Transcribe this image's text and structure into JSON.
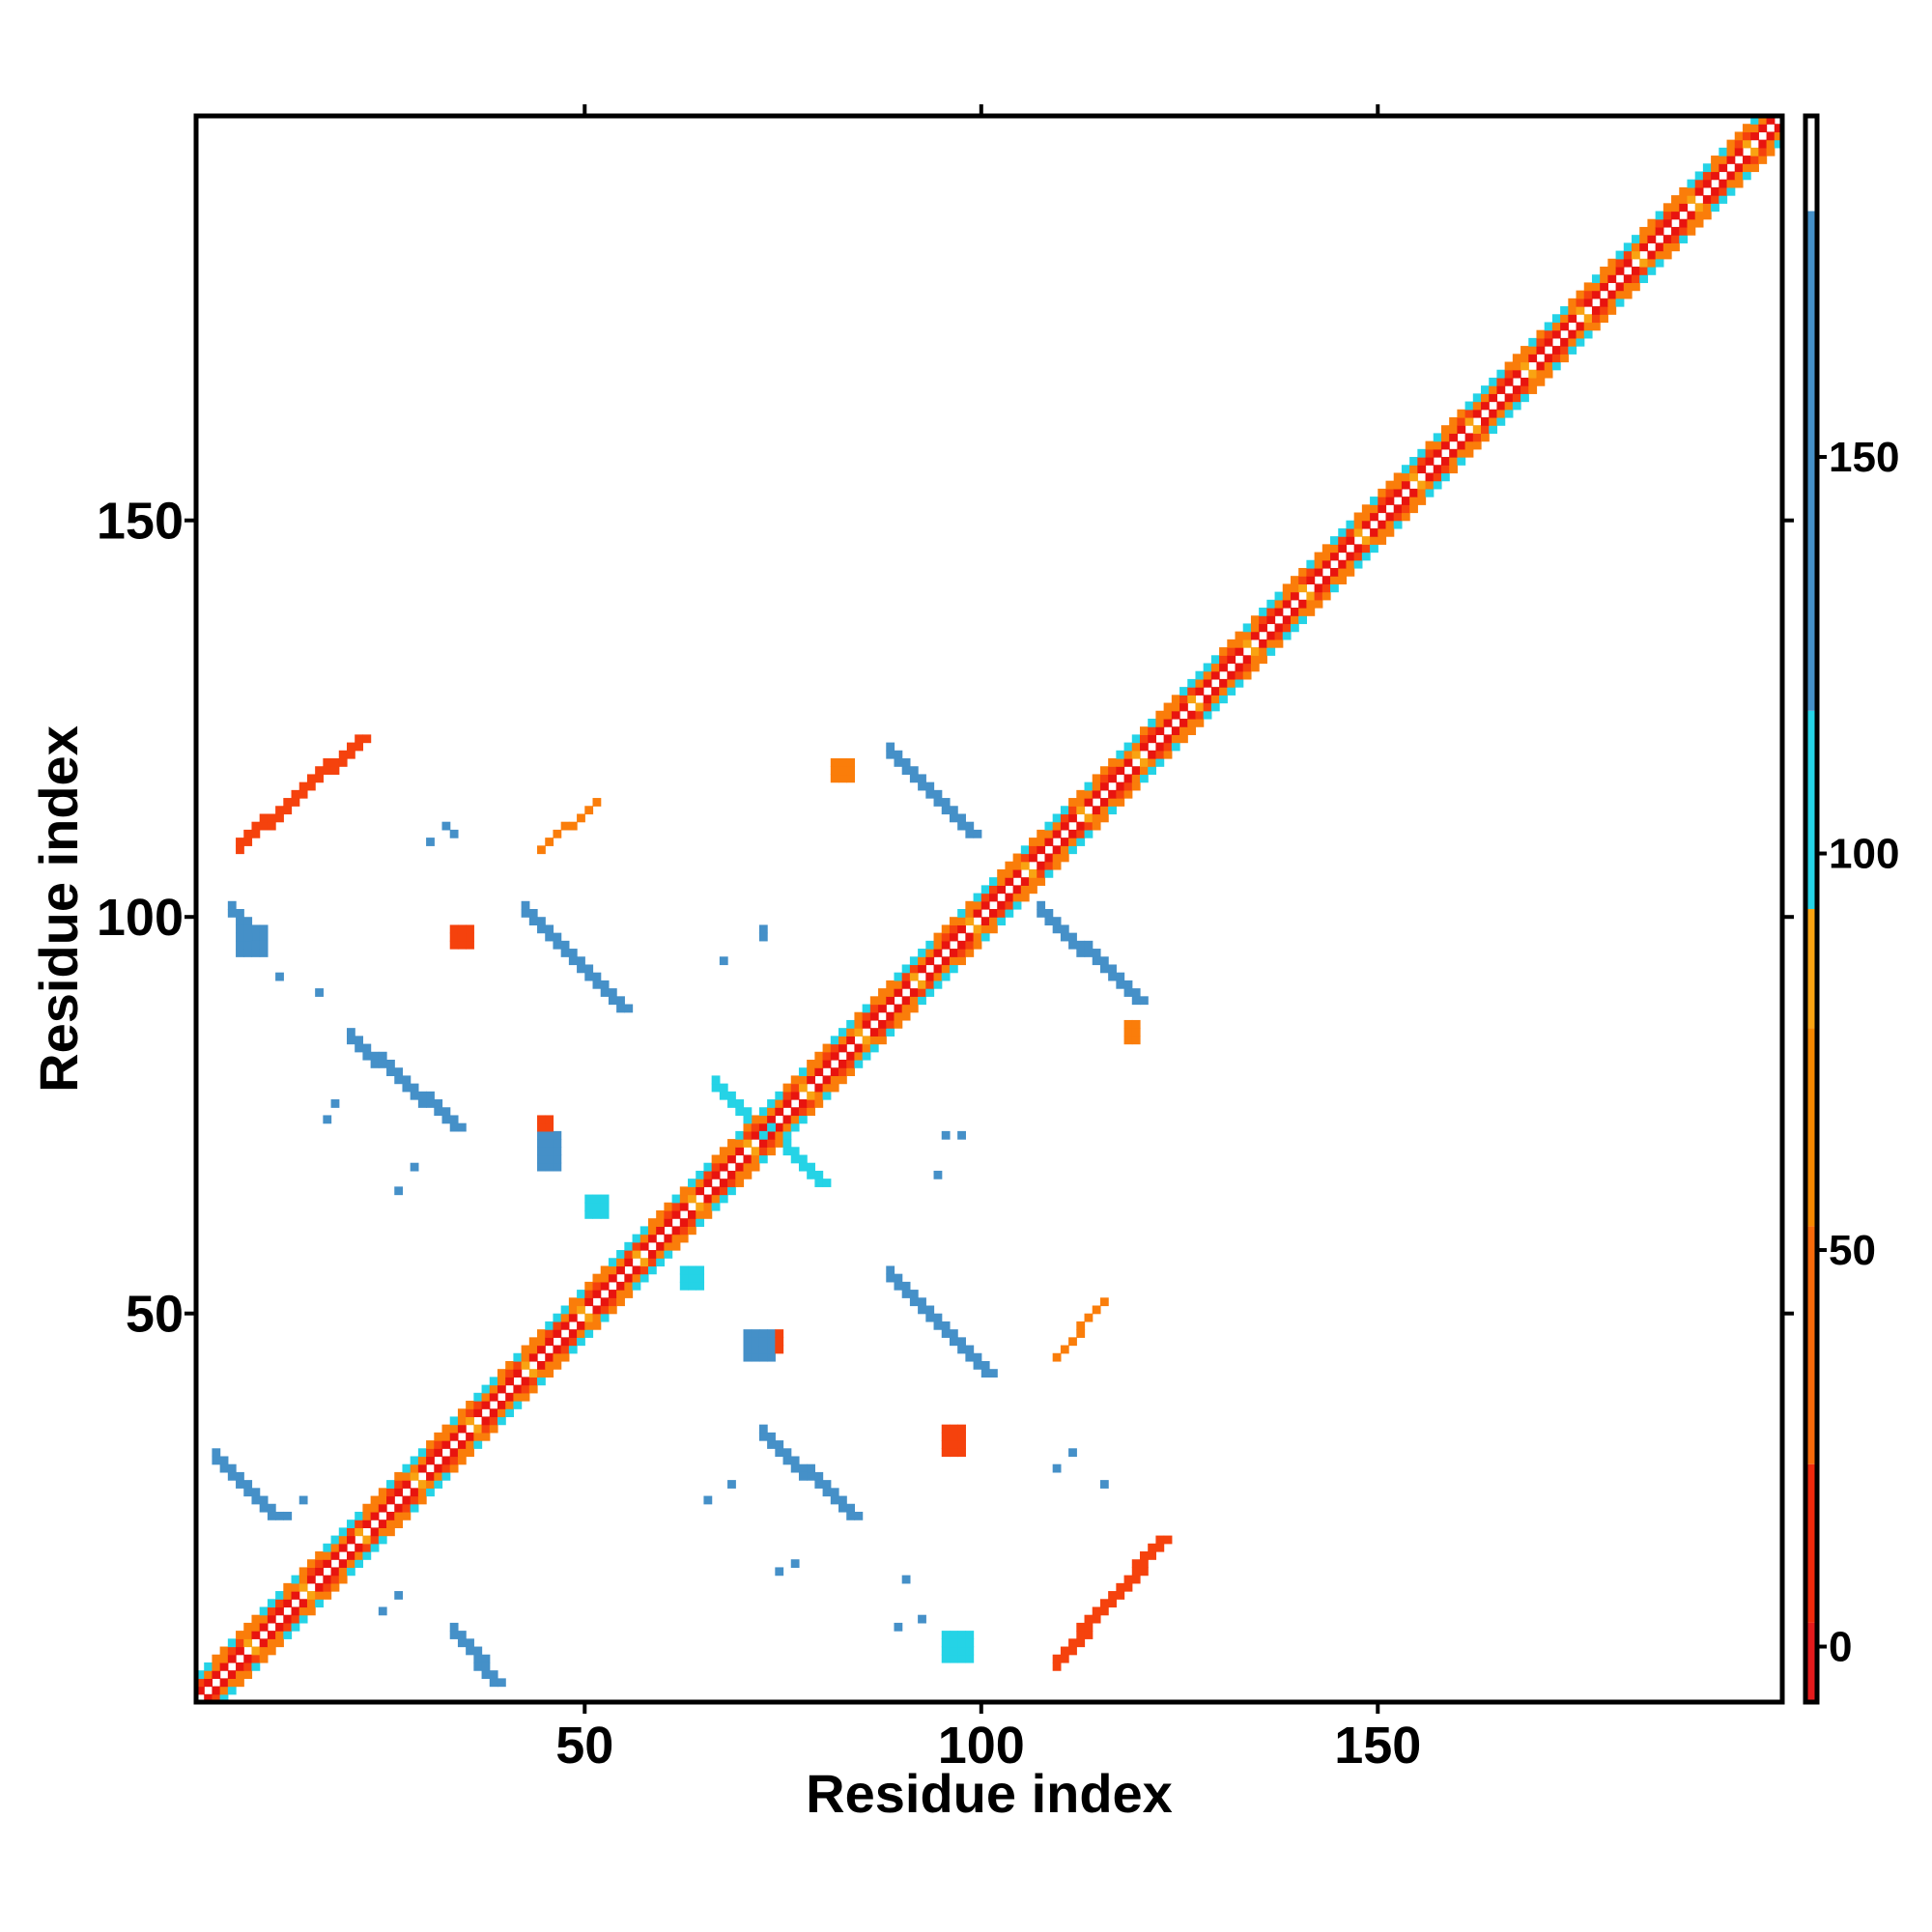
{
  "chart_data": {
    "type": "heatmap",
    "title": "",
    "xlabel": "Residue index",
    "ylabel": "Residue index",
    "xlim": [
      1,
      201
    ],
    "ylim": [
      1,
      201
    ],
    "x_ticks": [
      50,
      100,
      150
    ],
    "y_ticks": [
      50,
      100,
      150
    ],
    "grid": false,
    "n_residues": 200,
    "colorbar": {
      "ticks": [
        0,
        50,
        100,
        150
      ],
      "range": [
        -7,
        193
      ],
      "bands": [
        {
          "from": -7,
          "to": 3,
          "color": "#e41a1c"
        },
        {
          "from": 3,
          "to": 23,
          "color": "#f0290c"
        },
        {
          "from": 23,
          "to": 53,
          "color": "#f86a0a"
        },
        {
          "from": 53,
          "to": 78,
          "color": "#f58800"
        },
        {
          "from": 78,
          "to": 93,
          "color": "#f9a312"
        },
        {
          "from": 93,
          "to": 118,
          "color": "#25d3e6"
        },
        {
          "from": 118,
          "to": 181,
          "color": "#4590c8"
        },
        {
          "from": 181,
          "to": 193,
          "color": "#ffffff"
        }
      ]
    },
    "value_colors": {
      "red": "#e8140f",
      "red_orange": "#f5420d",
      "orange": "#fa7d0a",
      "light_orange": "#f9a312",
      "cyan": "#25d3e6",
      "blue": "#4590c8"
    },
    "regions": [
      {
        "kind": "segment",
        "from": [
          3,
          31
        ],
        "to": [
          10,
          24
        ],
        "width": 2,
        "color": "blue",
        "note": "antiparallel blob near (6,27)"
      },
      {
        "kind": "segment",
        "from": [
          33,
          9
        ],
        "to": [
          38,
          3
        ],
        "width": 2,
        "color": "blue"
      },
      {
        "kind": "segment",
        "from": [
          42,
          100
        ],
        "to": [
          54,
          88
        ],
        "width": 2,
        "color": "blue"
      },
      {
        "kind": "segment",
        "from": [
          42,
          100
        ],
        "to": [
          45,
          97
        ],
        "width": 2,
        "color": "cyan"
      },
      {
        "kind": "segment",
        "from": [
          20,
          84
        ],
        "to": [
          33,
          73
        ],
        "width": 2,
        "color": "blue"
      },
      {
        "kind": "segment",
        "from": [
          5,
          100
        ],
        "to": [
          8,
          97
        ],
        "width": 2,
        "color": "blue"
      },
      {
        "kind": "segment",
        "from": [
          88,
          54
        ],
        "to": [
          100,
          42
        ],
        "width": 2,
        "color": "blue"
      },
      {
        "kind": "segment",
        "from": [
          72,
          34
        ],
        "to": [
          83,
          24
        ],
        "width": 2,
        "color": "blue"
      },
      {
        "kind": "segment",
        "from": [
          88,
          120
        ],
        "to": [
          98,
          110
        ],
        "width": 2,
        "color": "blue"
      },
      {
        "kind": "segment",
        "from": [
          107,
          100
        ],
        "to": [
          119,
          89
        ],
        "width": 2,
        "color": "blue"
      },
      {
        "kind": "segment",
        "from": [
          66,
          78
        ],
        "to": [
          79,
          66
        ],
        "width": 2,
        "color": "cyan"
      },
      {
        "kind": "segment",
        "from": [
          6,
          109
        ],
        "to": [
          21,
          122
        ],
        "width": 2,
        "color": "red_orange"
      },
      {
        "kind": "segment",
        "from": [
          109,
          6
        ],
        "to": [
          122,
          21
        ],
        "width": 2,
        "color": "red_orange"
      },
      {
        "kind": "segment",
        "from": [
          44,
          108
        ],
        "to": [
          51,
          114
        ],
        "width": 1,
        "color": "orange"
      },
      {
        "kind": "segment",
        "from": [
          109,
          44
        ],
        "to": [
          115,
          51
        ],
        "width": 1,
        "color": "orange"
      },
      {
        "kind": "block",
        "x": [
          62,
          64
        ],
        "y": [
          53,
          55
        ],
        "color": "cyan"
      },
      {
        "kind": "block",
        "x": [
          50,
          52
        ],
        "y": [
          62,
          64
        ],
        "color": "cyan"
      },
      {
        "kind": "block",
        "x": [
          95,
          98
        ],
        "y": [
          6,
          9
        ],
        "color": "cyan"
      },
      {
        "kind": "block",
        "x": [
          6,
          9
        ],
        "y": [
          95,
          98
        ],
        "color": "blue"
      },
      {
        "kind": "block",
        "x": [
          70,
          73
        ],
        "y": [
          44,
          47
        ],
        "color": "blue"
      },
      {
        "kind": "block",
        "x": [
          44,
          46
        ],
        "y": [
          68,
          72
        ],
        "color": "blue"
      },
      {
        "kind": "block",
        "x": [
          33,
          35
        ],
        "y": [
          96,
          98
        ],
        "color": "red_orange"
      },
      {
        "kind": "block",
        "x": [
          95,
          97
        ],
        "y": [
          32,
          35
        ],
        "color": "red_orange"
      },
      {
        "kind": "block",
        "x": [
          118,
          119
        ],
        "y": [
          84,
          86
        ],
        "color": "orange"
      },
      {
        "kind": "block",
        "x": [
          81,
          83
        ],
        "y": [
          117,
          119
        ],
        "color": "orange"
      },
      {
        "kind": "block",
        "x": [
          73,
          74
        ],
        "y": [
          45,
          47
        ],
        "color": "red_orange"
      },
      {
        "kind": "block",
        "x": [
          44,
          45
        ],
        "y": [
          73,
          74
        ],
        "color": "red_orange"
      },
      {
        "kind": "dots",
        "points": [
          [
            30,
            109
          ],
          [
            32,
            111
          ],
          [
            33,
            110
          ],
          [
            97,
            33
          ],
          [
            111,
            32
          ],
          [
            109,
            30
          ],
          [
            115,
            28
          ],
          [
            11,
            92
          ],
          [
            16,
            90
          ],
          [
            92,
            11
          ],
          [
            90,
            16
          ],
          [
            72,
            97
          ],
          [
            72,
            98
          ],
          [
            97,
            72
          ],
          [
            95,
            72
          ],
          [
            89,
            10
          ],
          [
            26,
            65
          ],
          [
            65,
            26
          ],
          [
            68,
            65
          ],
          [
            65,
            68
          ],
          [
            26,
            14
          ],
          [
            14,
            26
          ],
          [
            28,
            68
          ],
          [
            68,
            28
          ],
          [
            17,
            74
          ],
          [
            74,
            17
          ],
          [
            24,
            12
          ],
          [
            12,
            24
          ],
          [
            67,
            94
          ],
          [
            94,
            67
          ],
          [
            18,
            76
          ],
          [
            76,
            18
          ]
        ],
        "color": "blue"
      }
    ]
  }
}
